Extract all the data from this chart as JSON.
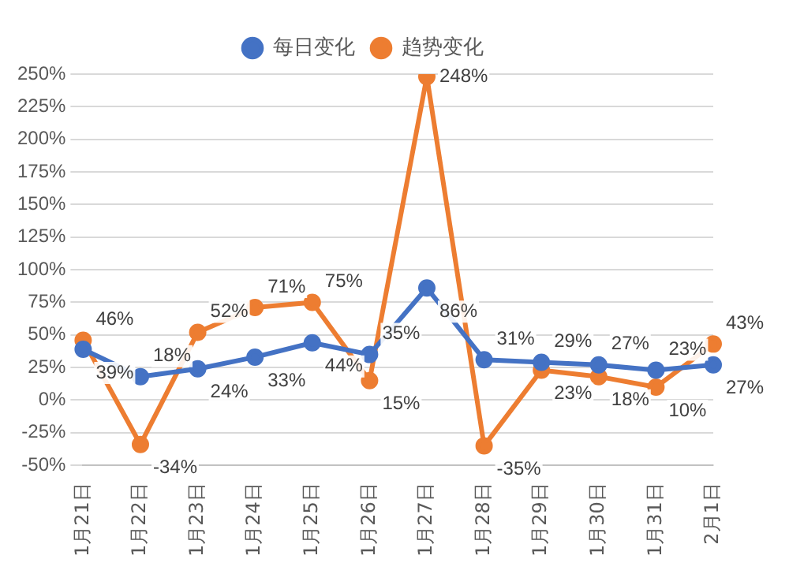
{
  "chart_data": {
    "type": "line",
    "categories": [
      "1月21日",
      "1月22日",
      "1月23日",
      "1月24日",
      "1月25日",
      "1月26日",
      "1月27日",
      "1月28日",
      "1月29日",
      "1月30日",
      "1月31日",
      "2月1日"
    ],
    "series": [
      {
        "name": "每日变化",
        "color": "#4472c4",
        "values": [
          39,
          18,
          24,
          33,
          44,
          35,
          86,
          31,
          29,
          27,
          23,
          27
        ],
        "value_labels": [
          "39%",
          "18%",
          "24%",
          "33%",
          "44%",
          "35%",
          "86%",
          "31%",
          "29%",
          "27%",
          "23%",
          "27%"
        ]
      },
      {
        "name": "趋势变化",
        "color": "#ed7d31",
        "values": [
          46,
          -34,
          52,
          71,
          75,
          15,
          248,
          -35,
          23,
          18,
          10,
          43
        ],
        "value_labels": [
          "46%",
          "-34%",
          "52%",
          "71%",
          "75%",
          "15%",
          "248%",
          "-35%",
          "23%",
          "18%",
          "10%",
          "43%"
        ]
      }
    ],
    "ylim": [
      -50,
      250
    ],
    "yticks": [
      {
        "value": -50,
        "label": "-50%"
      },
      {
        "value": -25,
        "label": "-25%"
      },
      {
        "value": 0,
        "label": "0%"
      },
      {
        "value": 25,
        "label": "25%"
      },
      {
        "value": 50,
        "label": "50%"
      },
      {
        "value": 75,
        "label": "75%"
      },
      {
        "value": 100,
        "label": "100%"
      },
      {
        "value": 125,
        "label": "125%"
      },
      {
        "value": 150,
        "label": "150%"
      },
      {
        "value": 175,
        "label": "175%"
      },
      {
        "value": 200,
        "label": "200%"
      },
      {
        "value": 225,
        "label": "225%"
      },
      {
        "value": 250,
        "label": "250%"
      }
    ],
    "grid": "y",
    "legend": "top",
    "marker": "circle",
    "line_style": "solid"
  }
}
